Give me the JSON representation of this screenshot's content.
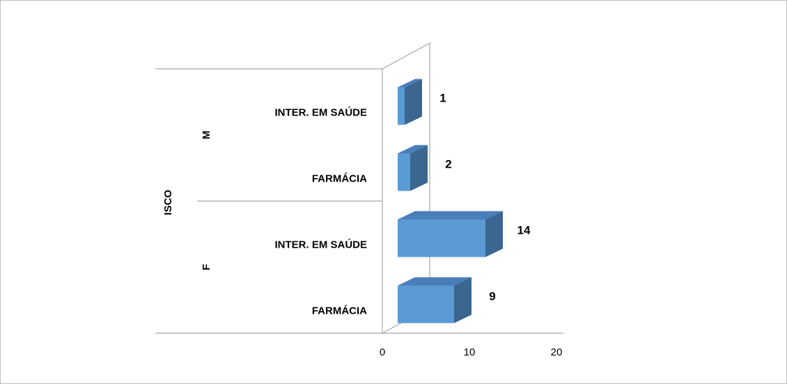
{
  "chart_data": {
    "type": "bar",
    "orientation": "horizontal",
    "style": "3d",
    "title": "",
    "xlabel": "",
    "ylabel": "ISCO",
    "xlim": [
      0,
      20
    ],
    "x_ticks": [
      "0",
      "10",
      "20"
    ],
    "grid": false,
    "legend": "none",
    "groups": [
      {
        "name": "M",
        "categories": [
          "INTER. EM SAÚDE",
          "FARMÁCIA"
        ],
        "values": [
          1,
          2
        ],
        "labels": [
          "1",
          "2"
        ]
      },
      {
        "name": "F",
        "categories": [
          "INTER. EM SAÚDE",
          "FARMÁCIA"
        ],
        "values": [
          14,
          9
        ],
        "labels": [
          "14",
          "9"
        ]
      }
    ]
  },
  "colors": {
    "bar_front": "#5b9bd5",
    "bar_top": "#4a7ebb",
    "bar_side": "#3a6690",
    "axis_line": "#a6a6a6",
    "border": "#bfbfbf"
  }
}
